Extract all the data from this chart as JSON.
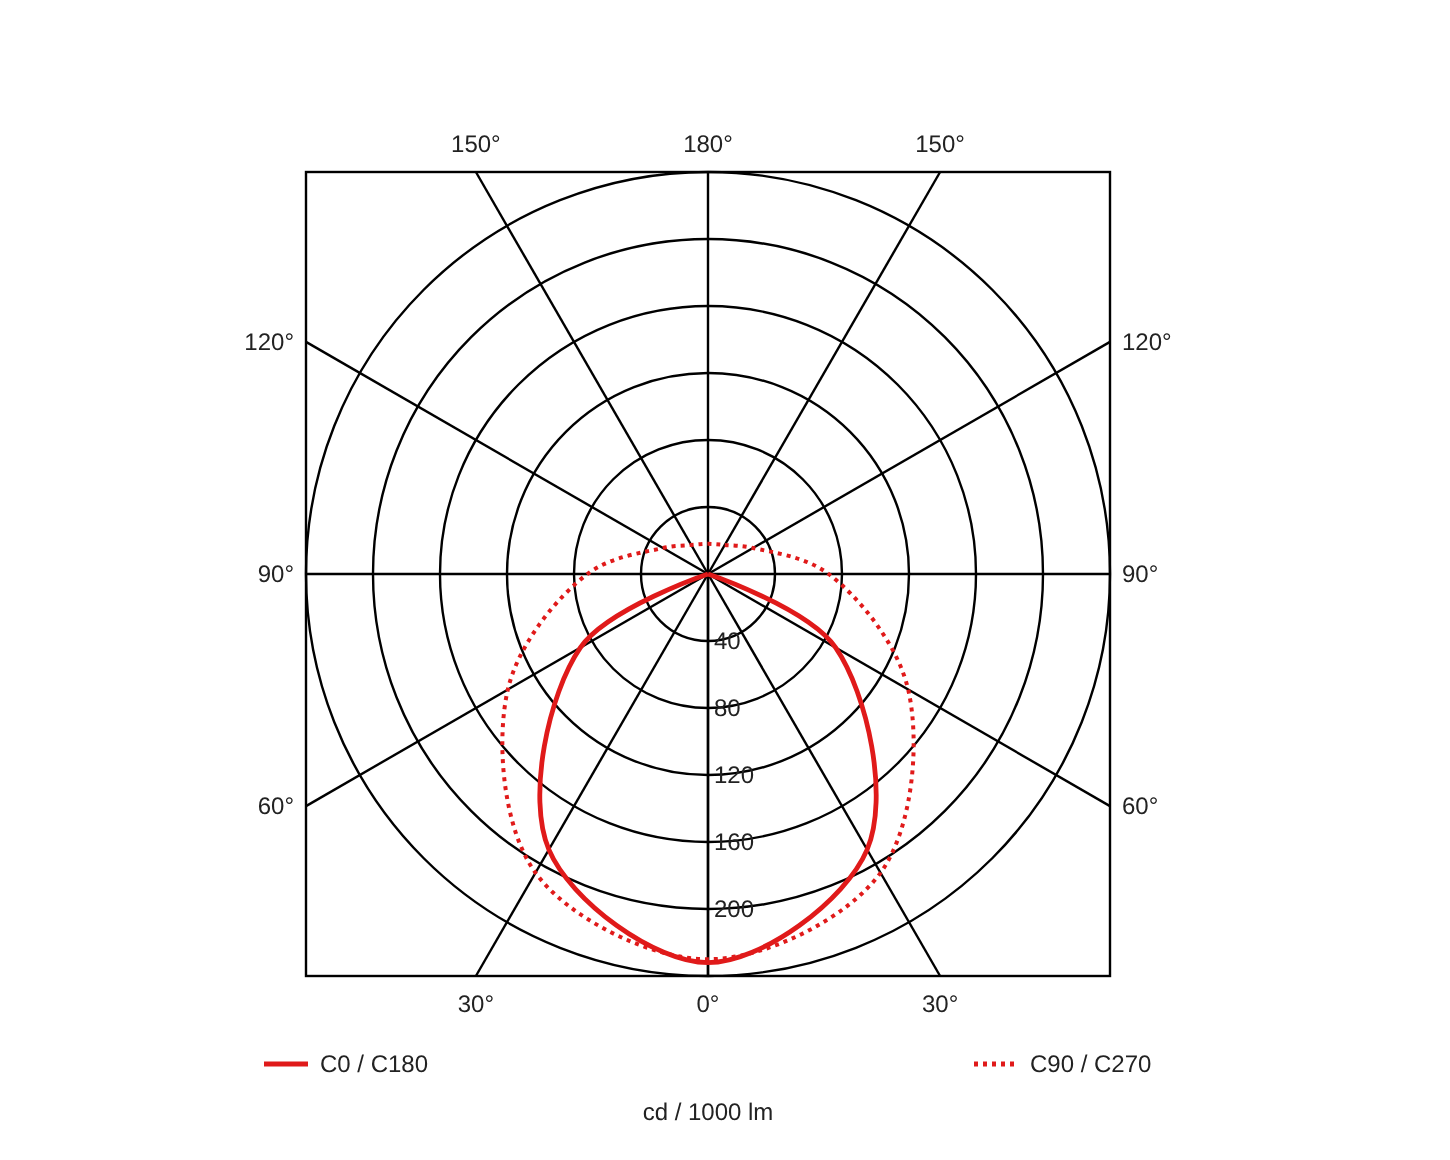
{
  "chart_data": {
    "type": "radar",
    "xlabel": "cd / 1000 lm",
    "categories": [
      "180°",
      "150°",
      "120°",
      "90°",
      "60°",
      "30°",
      "0°",
      "30°",
      "60°",
      "90°",
      "120°",
      "150°"
    ],
    "ylim": [
      0,
      240
    ],
    "yticks": [
      40,
      80,
      120,
      160,
      200
    ],
    "legend": "bottom",
    "grid": true,
    "series": [
      {
        "name": "C0 / C180",
        "color": "#e01a1a",
        "line_style": "solid",
        "values": [
          0,
          0,
          0,
          0,
          88,
          190,
          232,
          190,
          88,
          0,
          0,
          0
        ]
      },
      {
        "name": "C90 / C270",
        "color": "#e01a1a",
        "line_style": "dotted",
        "values": [
          18,
          20,
          31,
          72,
          138,
          206,
          230,
          206,
          138,
          72,
          31,
          20
        ]
      }
    ]
  }
}
